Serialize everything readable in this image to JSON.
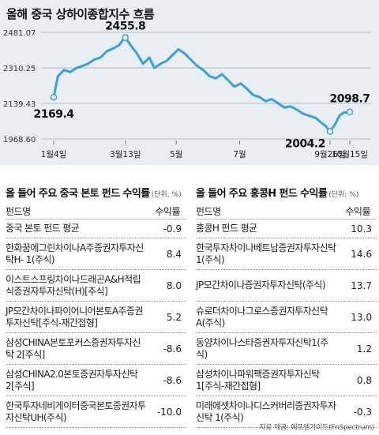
{
  "chart_data": {
    "type": "line",
    "title": "올해 중국 상하이종합지수 흐름",
    "y_ticks": [
      "2481.07",
      "2310.25",
      "2139.43",
      "1968.60"
    ],
    "y_tick_values": [
      2481.07,
      2310.25,
      2139.43,
      1968.6
    ],
    "ylim": [
      1968.6,
      2481.07
    ],
    "x_ticks": [
      "1월4일",
      "3월13일",
      "5월",
      "7월",
      "9월26일",
      "10월15일"
    ],
    "grid": true,
    "annotations": [
      "2169.4",
      "2455.8",
      "2004.2",
      "2098.7"
    ],
    "series": [
      {
        "x": [
          "1/4",
          "1/8",
          "1/14",
          "1/20",
          "1/26",
          "2/1",
          "2/6",
          "2/12",
          "2/18",
          "2/24",
          "3/2",
          "3/7",
          "3/10",
          "3/13",
          "3/18",
          "3/24",
          "3/30",
          "4/5",
          "4/10",
          "4/16",
          "4/22",
          "4/28",
          "5/3",
          "5/9",
          "5/15",
          "5/21",
          "5/27",
          "6/2",
          "6/8",
          "6/14",
          "6/20",
          "6/26",
          "7/2",
          "7/8",
          "7/14",
          "7/20",
          "7/26",
          "8/1",
          "8/7",
          "8/13",
          "8/19",
          "8/25",
          "8/31",
          "9/6",
          "9/12",
          "9/18",
          "9/22",
          "9/26",
          "10/1",
          "10/5",
          "10/9",
          "10/15"
        ],
        "values": [
          2169.4,
          2270,
          2300,
          2290,
          2310,
          2320,
          2330,
          2350,
          2360,
          2390,
          2405,
          2420,
          2440,
          2455.8,
          2420,
          2380,
          2330,
          2360,
          2310,
          2330,
          2345,
          2375,
          2400,
          2380,
          2350,
          2320,
          2300,
          2270,
          2260,
          2280,
          2250,
          2220,
          2235,
          2210,
          2180,
          2170,
          2150,
          2160,
          2140,
          2120,
          2125,
          2110,
          2090,
          2080,
          2070,
          2045,
          2030,
          2004.2,
          2040,
          2080,
          2095,
          2098.7
        ]
      }
    ]
  },
  "tables": [
    {
      "title": "올 들어 주요 중국 본토 펀드 수익률",
      "unit": "(단위: %)",
      "col_name": "펀드명",
      "col_value": "수익률",
      "rows": [
        {
          "name": "중국 본토 펀드 평균",
          "value": "-0.9"
        },
        {
          "name": "한화꿈에그린차이나A주증권자투자신탁H- 1(주식)",
          "value": "8.4"
        },
        {
          "name": "이스트스프링차이나드래곤A&H적립식증권자투자신탁(H)[주식]",
          "value": "8.0"
        },
        {
          "name": "JP모간차이나파이어니어본토A주증권투자신탁[주식-재간접형]",
          "value": "5.2"
        },
        {
          "name": "삼성CHINA본토포커스증권자투자신탁 2[주식]",
          "value": "-8.6"
        },
        {
          "name": "삼성CHINA2.0본토증권자투자신탁 2[주식]",
          "value": "-8.6"
        },
        {
          "name": "한국투자네비게이터중국본토증권자투자신탁UH(주식)",
          "value": "-10.0"
        }
      ]
    },
    {
      "title": "올 들어 주요 홍콩H 펀드 수익률",
      "unit": "(단위: %)",
      "col_name": "펀드명",
      "col_value": "수익률",
      "rows": [
        {
          "name": "홍콩H 펀드 평균",
          "value": "10.3"
        },
        {
          "name": "한국투자차이나베트남증권자투자신탁 1(주식)",
          "value": "14.6"
        },
        {
          "name": "JP모간차이나증권자투자신탁(주식)",
          "value": "13.7"
        },
        {
          "name": "슈로더차이나그로스증권자투자신탁A(주식)",
          "value": "13.0"
        },
        {
          "name": "동양차이나스타증권자투자신탁1(주식)",
          "value": "1.2"
        },
        {
          "name": "삼성차이나파워팩증권자투자신탁 1[주식-재간접형]",
          "value": "0.8"
        },
        {
          "name": "미래에셋차이나디스커버리증권자투자신탁 1(주식)",
          "value": "-0.3"
        }
      ]
    }
  ],
  "source": "자료 제공: 에프엔가이드(FnSpectrum)",
  "colors": {
    "line": "#3aa0da",
    "background": "#e9eef2",
    "marker": "#3aa0da"
  }
}
